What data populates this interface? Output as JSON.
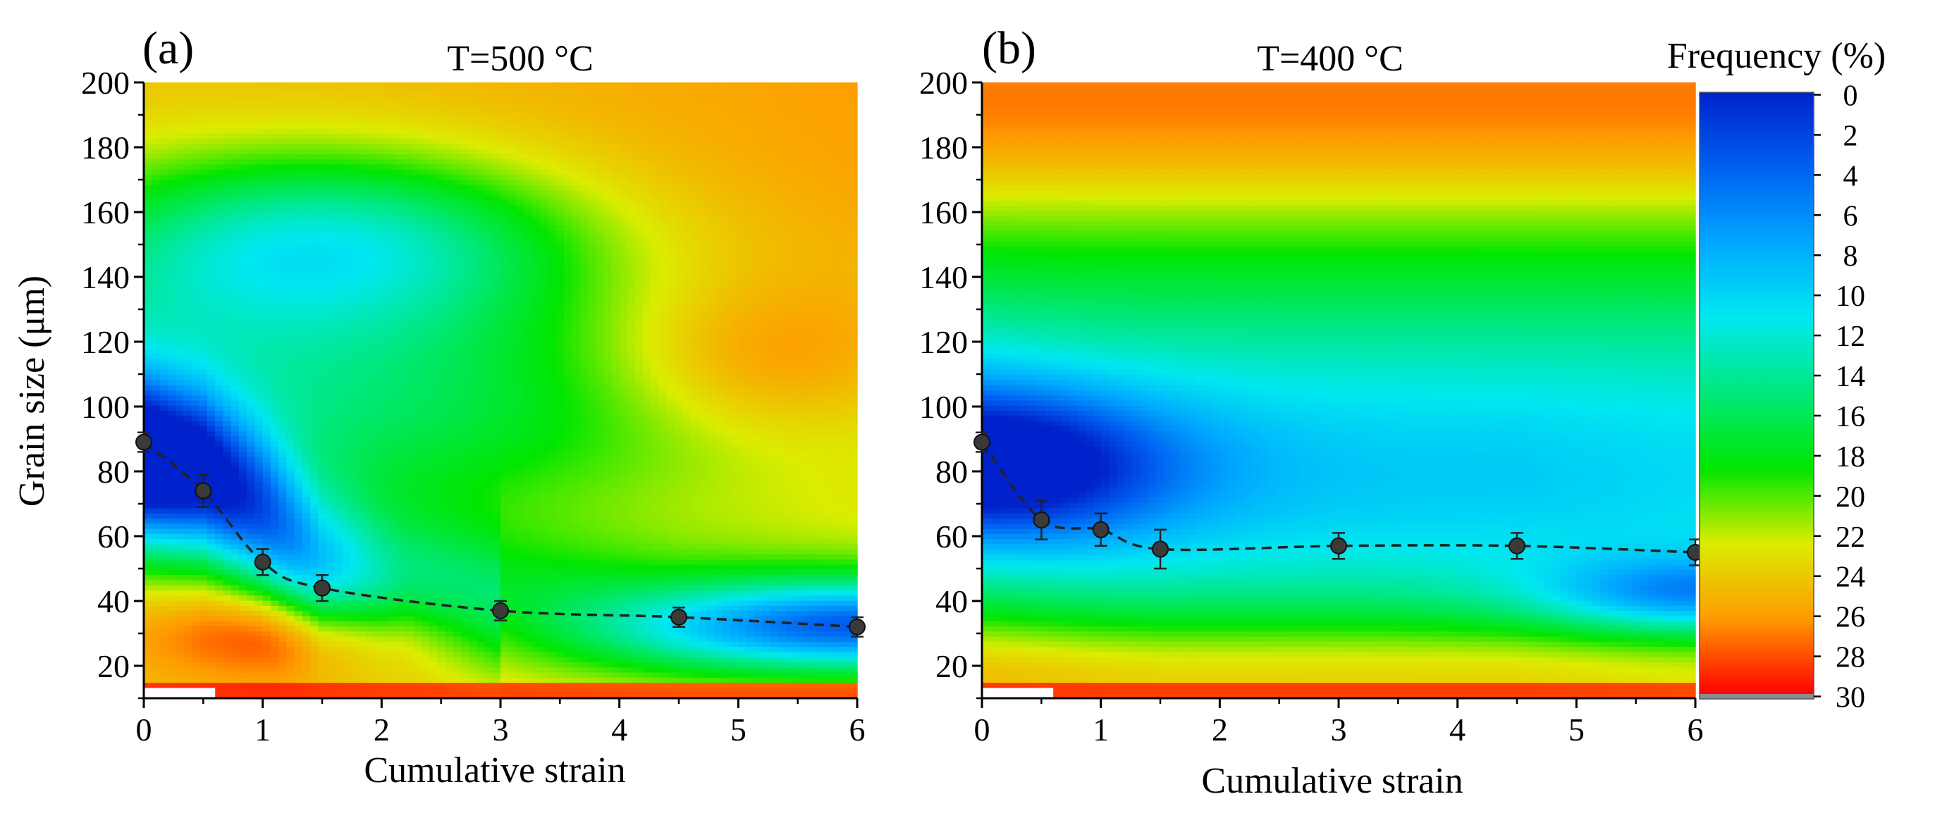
{
  "chart_data": [
    {
      "type": "heatmap",
      "tag": "(a)",
      "title": "T=500 °C",
      "xlabel": "Cumulative strain",
      "ylabel": "Grain size (μm)",
      "xlim": [
        0,
        6
      ],
      "ylim": [
        10,
        200
      ],
      "xticks": [
        "0",
        "1",
        "2",
        "3",
        "4",
        "5",
        "6"
      ],
      "yticks": [
        "20",
        "40",
        "60",
        "80",
        "100",
        "120",
        "140",
        "160",
        "180",
        "200"
      ],
      "grid": false,
      "ridge": [
        {
          "x": 0,
          "y": 82
        },
        {
          "x": 0.5,
          "y": 78
        },
        {
          "x": 1,
          "y": 66
        },
        {
          "x": 1.5,
          "y": 50
        },
        {
          "x": 2,
          "y": 44
        },
        {
          "x": 3,
          "y": 38
        },
        {
          "x": 4.5,
          "y": 34
        },
        {
          "x": 6,
          "y": 34
        }
      ],
      "points": [
        {
          "x": 0,
          "y": 89,
          "err": 3
        },
        {
          "x": 0.5,
          "y": 74,
          "err": 5
        },
        {
          "x": 1,
          "y": 52,
          "err": 4
        },
        {
          "x": 1.5,
          "y": 44,
          "err": 4
        },
        {
          "x": 3,
          "y": 37,
          "err": 3
        },
        {
          "x": 4.5,
          "y": 35,
          "err": 3
        },
        {
          "x": 6,
          "y": 32,
          "err": 3
        }
      ]
    },
    {
      "type": "heatmap",
      "tag": "(b)",
      "title": "T=400 °C",
      "xlabel": "Cumulative strain",
      "ylabel": "",
      "xlim": [
        0,
        6
      ],
      "ylim": [
        10,
        200
      ],
      "xticks": [
        "0",
        "1",
        "2",
        "3",
        "4",
        "5",
        "6"
      ],
      "yticks": [
        "20",
        "40",
        "60",
        "80",
        "100",
        "120",
        "140",
        "160",
        "180",
        "200"
      ],
      "grid": false,
      "ridge": [
        {
          "x": 0,
          "y": 82
        },
        {
          "x": 0.5,
          "y": 72
        },
        {
          "x": 1,
          "y": 63
        },
        {
          "x": 1.5,
          "y": 58
        },
        {
          "x": 3,
          "y": 57
        },
        {
          "x": 4.5,
          "y": 56
        },
        {
          "x": 6,
          "y": 42
        }
      ],
      "points": [
        {
          "x": 0,
          "y": 89,
          "err": 3
        },
        {
          "x": 0.5,
          "y": 65,
          "err": 6
        },
        {
          "x": 1,
          "y": 62,
          "err": 5
        },
        {
          "x": 1.5,
          "y": 56,
          "err": 6
        },
        {
          "x": 3,
          "y": 57,
          "err": 4
        },
        {
          "x": 4.5,
          "y": 57,
          "err": 4
        },
        {
          "x": 6,
          "y": 55,
          "err": 4
        }
      ]
    }
  ],
  "colorbar": {
    "title": "Frequency (%)",
    "ticks": [
      "0",
      "2",
      "4",
      "6",
      "8",
      "10",
      "12",
      "14",
      "16",
      "18",
      "20",
      "22",
      "24",
      "26",
      "28",
      "30"
    ],
    "colors": [
      "#0022cc",
      "#0060f0",
      "#00a8ff",
      "#00e8f0",
      "#00e87a",
      "#00e600",
      "#dcec00",
      "#ff9a00",
      "#ff0000"
    ]
  }
}
